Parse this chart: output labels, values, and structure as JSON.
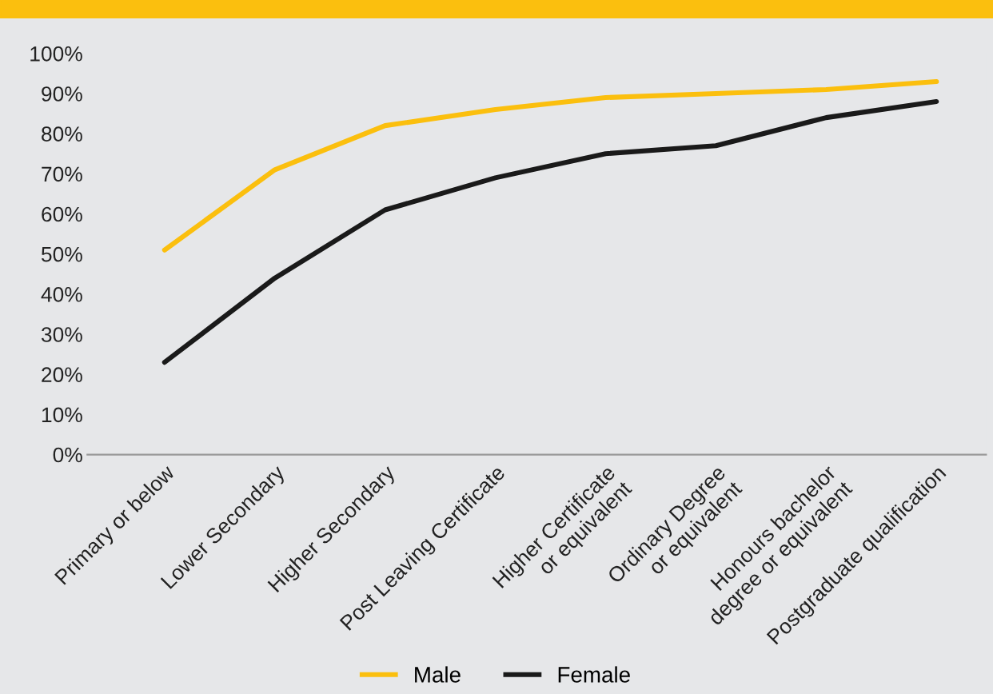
{
  "chart_data": {
    "type": "line",
    "categories": [
      "Primary or below",
      "Lower Secondary",
      "Higher Secondary",
      "Post Leaving Certificate",
      "Higher Certificate\nor equivalent",
      "Ordinary Degree\nor equivalent",
      "Honours bachelor\ndegree or equivalent",
      "Postgraduate qualification"
    ],
    "series": [
      {
        "name": "Male",
        "color": "#fbbf0e",
        "values": [
          51,
          71,
          82,
          86,
          89,
          90,
          91,
          93
        ]
      },
      {
        "name": "Female",
        "color": "#1a1a1a",
        "values": [
          23,
          44,
          61,
          69,
          75,
          77,
          84,
          88
        ]
      }
    ],
    "ylim": [
      0,
      100
    ],
    "yticks": [
      {
        "value": 0,
        "label": "0%"
      },
      {
        "value": 10,
        "label": "10%"
      },
      {
        "value": 20,
        "label": "20%"
      },
      {
        "value": 30,
        "label": "30%"
      },
      {
        "value": 40,
        "label": "40%"
      },
      {
        "value": 50,
        "label": "50%"
      },
      {
        "value": 60,
        "label": "60%"
      },
      {
        "value": 70,
        "label": "70%"
      },
      {
        "value": 80,
        "label": "80%"
      },
      {
        "value": 90,
        "label": "90%"
      },
      {
        "value": 100,
        "label": "100%"
      }
    ],
    "grid": false,
    "legend": "bottom",
    "marker": "none",
    "line_style": "solid"
  }
}
